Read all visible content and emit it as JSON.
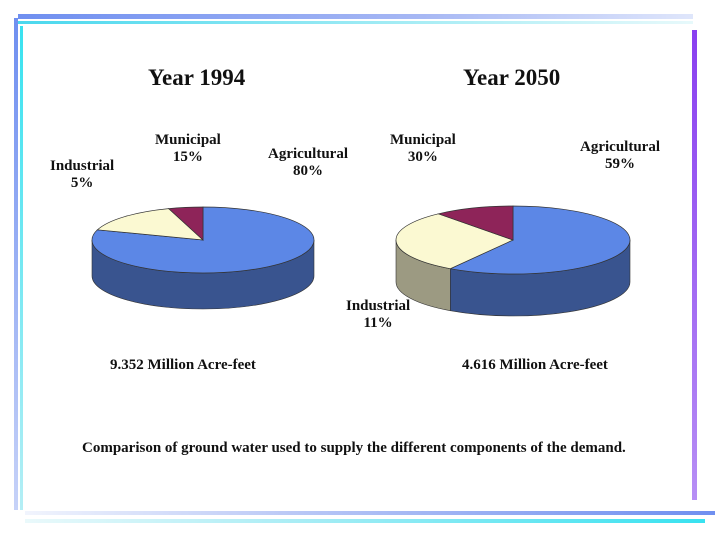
{
  "chart_data": [
    {
      "type": "pie",
      "title": "Year 1994",
      "total_label": "9.352 Million Acre-feet",
      "slices": [
        {
          "name": "Agricultural",
          "value": 80,
          "label": "80%",
          "color": "#5c87e6"
        },
        {
          "name": "Municipal",
          "value": 15,
          "label": "15%",
          "color": "#fbf9d2"
        },
        {
          "name": "Industrial",
          "value": 5,
          "label": "5%",
          "color": "#8e2459"
        }
      ]
    },
    {
      "type": "pie",
      "title": "Year 2050",
      "total_label": "4.616 Million Acre-feet",
      "slices": [
        {
          "name": "Agricultural",
          "value": 59,
          "label": "59%",
          "color": "#5c87e6"
        },
        {
          "name": "Municipal",
          "value": 30,
          "label": "30%",
          "color": "#fbf9d2"
        },
        {
          "name": "Industrial",
          "value": 11,
          "label": "11%",
          "color": "#8e2459"
        }
      ]
    }
  ],
  "caption": "Comparison of ground water used to supply the different components of the demand.",
  "colors": {
    "frame_blue": "#6f8ff0",
    "frame_cyan": "#38e2f0",
    "frame_purple": "#8a3ff0"
  }
}
